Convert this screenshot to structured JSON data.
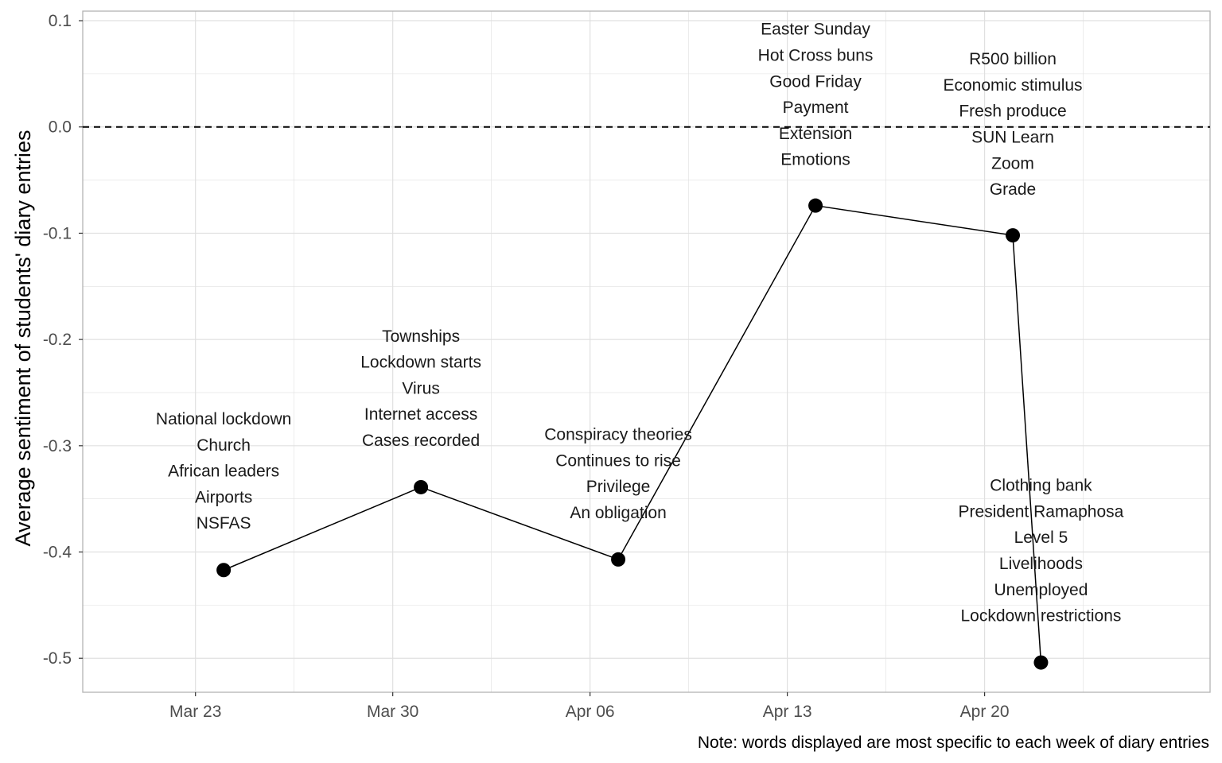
{
  "chart_data": {
    "type": "line",
    "title": "",
    "xlabel": "",
    "ylabel": "Average sentiment of students' diary entries",
    "caption": "Note: words displayed are most specific to each week of diary entries",
    "x_ticks": [
      "Mar 23",
      "Mar 30",
      "Apr 06",
      "Apr 13",
      "Apr 20"
    ],
    "y_ticks": [
      "0.1",
      "0.0",
      "-0.1",
      "-0.2",
      "-0.3",
      "-0.4",
      "-0.5"
    ],
    "ylim": [
      -0.532,
      0.109
    ],
    "x_range": [
      "2020-03-19",
      "2020-04-28"
    ],
    "reference_line": {
      "y": 0.0,
      "style": "dashed"
    },
    "grid": true,
    "legend": "none",
    "points": [
      {
        "x": "2020-03-24",
        "y": -0.417,
        "words": [
          "National lockdown",
          "Church",
          "African leaders",
          "Airports",
          "NSFAS"
        ]
      },
      {
        "x": "2020-03-31",
        "y": -0.339,
        "words": [
          "Townships",
          "Lockdown starts",
          "Virus",
          "Internet access",
          "Cases recorded"
        ]
      },
      {
        "x": "2020-04-07",
        "y": -0.407,
        "words": [
          "Conspiracy theories",
          "Continues to rise",
          "Privilege",
          "An obligation"
        ]
      },
      {
        "x": "2020-04-14",
        "y": -0.074,
        "words": [
          "Easter Sunday",
          "Hot Cross buns",
          "Good Friday",
          "Payment",
          "Extension",
          "Emotions"
        ]
      },
      {
        "x": "2020-04-21",
        "y": -0.102,
        "words": [
          "R500 billion",
          "Economic stimulus",
          "Fresh produce",
          "SUN Learn",
          "Zoom",
          "Grade"
        ]
      },
      {
        "x": "2020-04-22",
        "y": -0.504,
        "words": [
          "Clothing bank",
          "President Ramaphosa",
          "Level 5",
          "Livelihoods",
          "Unemployed",
          "Lockdown restrictions"
        ]
      }
    ],
    "colors": {
      "line": "#000000",
      "point": "#000000",
      "grid": "#e0e0e0",
      "panel_border": "#b3b3b3",
      "tick_text": "#4d4d4d"
    }
  }
}
